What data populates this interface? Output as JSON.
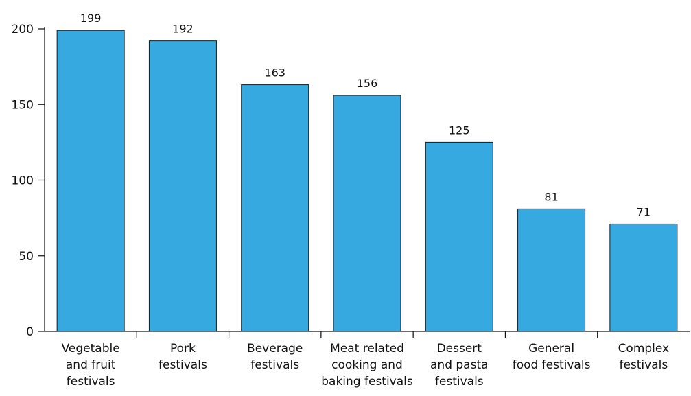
{
  "chart_data": {
    "type": "bar",
    "categories": [
      [
        "Vegetable",
        "and fruit",
        "festivals"
      ],
      [
        "Pork",
        "festivals"
      ],
      [
        "Beverage",
        "festivals"
      ],
      [
        "Meat related",
        "cooking and",
        "baking festivals"
      ],
      [
        "Dessert",
        "and pasta",
        "festivals"
      ],
      [
        "General",
        "food festivals"
      ],
      [
        "Complex",
        "festivals"
      ]
    ],
    "values": [
      199,
      192,
      163,
      156,
      125,
      81,
      71
    ],
    "value_labels": [
      "199",
      "192",
      "163",
      "156",
      "125",
      "81",
      "71"
    ],
    "yticks": [
      0,
      50,
      100,
      150,
      200
    ],
    "ytick_labels": [
      "0",
      "50",
      "100",
      "150",
      "200"
    ],
    "ylim": [
      0,
      200
    ],
    "title": "",
    "xlabel": "",
    "ylabel": "",
    "grid": false,
    "bar_color": "#37a9e1"
  }
}
